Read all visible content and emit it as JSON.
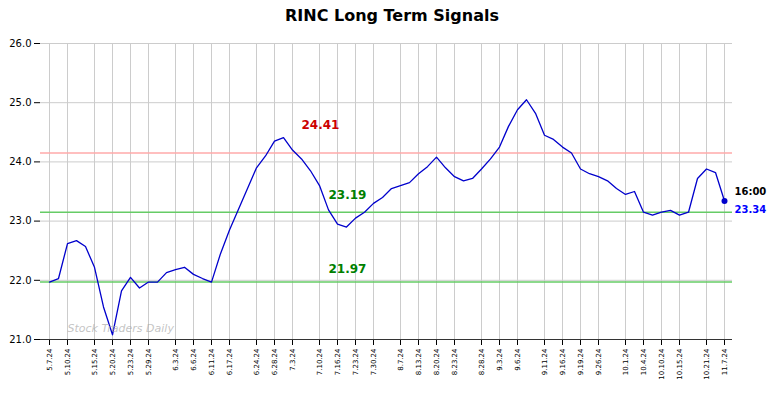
{
  "chart_data": {
    "type": "line",
    "title": "RINC Long Term Signals",
    "categories": [
      "5.7.24",
      null,
      "5.10.24",
      null,
      null,
      "5.15.24",
      null,
      "5.20.24",
      null,
      "5.23.24",
      null,
      "5.29.24",
      null,
      null,
      "6.3.24",
      null,
      "6.6.24",
      null,
      "6.11.24",
      null,
      "6.17.24",
      null,
      null,
      "6.24.24",
      null,
      "6.28.24",
      null,
      "7.3.24",
      null,
      null,
      "7.10.24",
      null,
      "7.16.24",
      null,
      "7.23.24",
      null,
      "7.30.24",
      null,
      null,
      "8.7.24",
      null,
      "8.13.24",
      null,
      "8.20.24",
      null,
      "8.23.24",
      null,
      null,
      "8.28.24",
      null,
      "9.3.24",
      null,
      "9.6.24",
      null,
      null,
      "9.11.24",
      null,
      "9.16.24",
      null,
      "9.19.24",
      null,
      "9.26.24",
      null,
      null,
      "10.1.24",
      null,
      "10.4.24",
      null,
      "10.10.24",
      null,
      "10.15.24",
      null,
      null,
      "10.21.24",
      null,
      "11.7.24"
    ],
    "values": [
      21.97,
      22.03,
      22.62,
      22.67,
      22.57,
      22.22,
      21.55,
      21.08,
      21.82,
      22.05,
      21.87,
      21.97,
      21.97,
      22.13,
      22.18,
      22.22,
      22.1,
      22.03,
      21.97,
      22.45,
      22.85,
      23.2,
      23.55,
      23.9,
      24.1,
      24.35,
      24.41,
      24.2,
      24.05,
      23.85,
      23.6,
      23.19,
      22.95,
      22.9,
      23.05,
      23.15,
      23.3,
      23.4,
      23.55,
      23.6,
      23.65,
      23.8,
      23.92,
      24.08,
      23.9,
      23.75,
      23.68,
      23.72,
      23.88,
      24.05,
      24.25,
      24.6,
      24.88,
      25.05,
      24.82,
      24.45,
      24.38,
      24.25,
      24.15,
      23.88,
      23.8,
      23.75,
      23.68,
      23.55,
      23.45,
      23.5,
      23.15,
      23.1,
      23.15,
      23.18,
      23.1,
      23.15,
      23.72,
      23.88,
      23.82,
      23.34
    ],
    "color": "#0000cc",
    "ylim": [
      21,
      26
    ],
    "yticks": [
      21,
      22,
      23,
      24,
      25,
      26
    ],
    "grid": true,
    "hlines": [
      {
        "value": 24.15,
        "color": "#ffaaaa"
      },
      {
        "value": 23.15,
        "color": "#66cc66"
      },
      {
        "value": 21.97,
        "color": "#66cc66"
      }
    ],
    "annotations": [
      {
        "text": "24.41",
        "color": "#cc0000",
        "x": 28,
        "y": 24.56
      },
      {
        "text": "23.19",
        "color": "green",
        "x": 31,
        "y": 23.38
      },
      {
        "text": "21.97",
        "color": "green",
        "x": 31,
        "y": 22.12
      }
    ],
    "last_point": {
      "color": "#0000cc",
      "labels": [
        {
          "text": "16:00",
          "color": "black"
        },
        {
          "text": "23.34",
          "color": "blue"
        }
      ]
    },
    "watermark": {
      "text": "Stock Traders Daily",
      "color": "#aaaaaa",
      "x": 2,
      "y": 21.12
    }
  }
}
